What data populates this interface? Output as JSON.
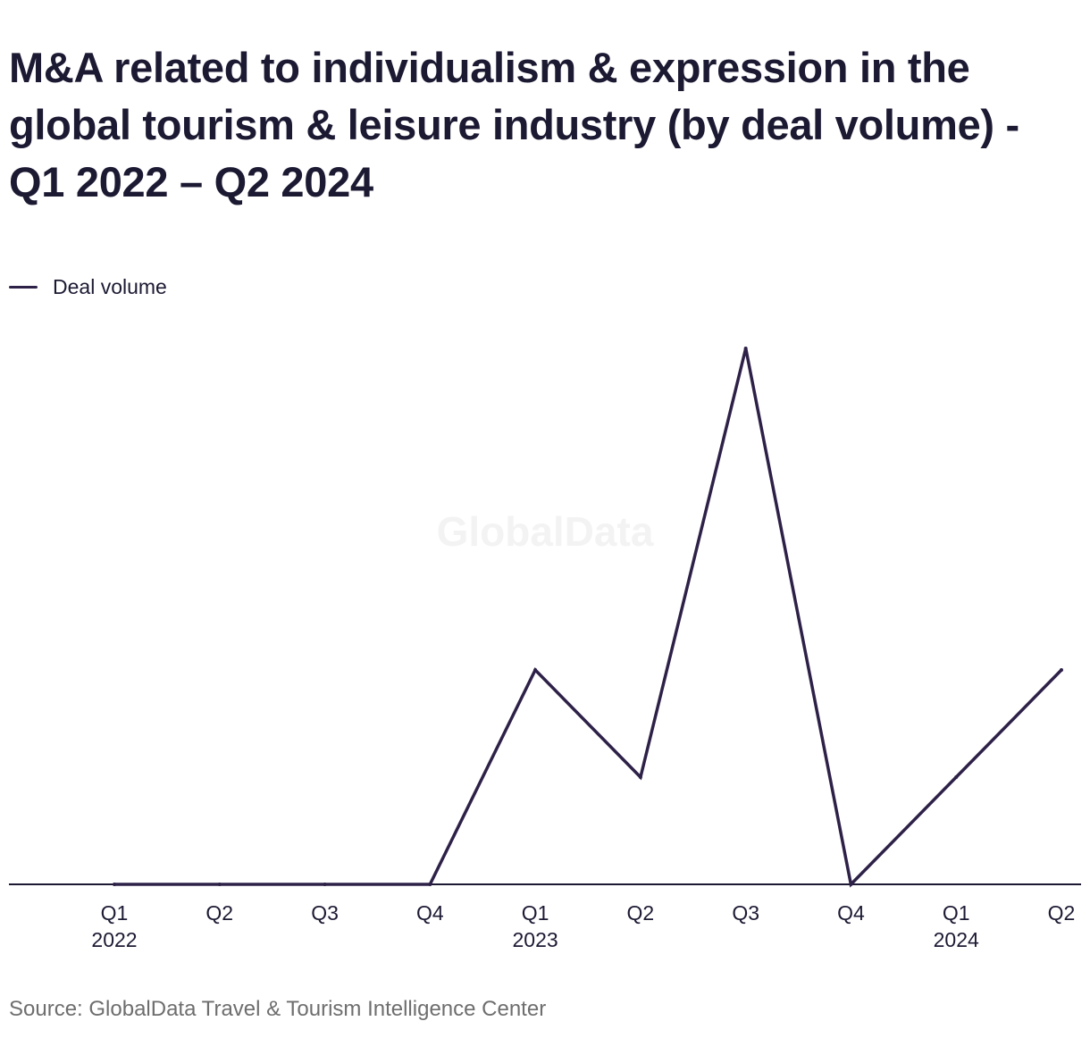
{
  "title": "M&A related to individualism & expression in the global tourism & leisure industry (by deal volume) - Q1 2022 – Q2 2024",
  "watermark": "GlobalData",
  "source": "Source: GlobalData Travel & Tourism Intelligence Center",
  "colors": {
    "line": "#2e2148",
    "axis": "#1c1a33",
    "text": "#1c1a33"
  },
  "chart_data": {
    "type": "line",
    "title": "M&A related to individualism & expression in the global tourism & leisure industry (by deal volume) - Q1 2022 – Q2 2024",
    "categories": [
      "Q1 2022",
      "Q2 2022",
      "Q3 2022",
      "Q4 2022",
      "Q1 2023",
      "Q2 2023",
      "Q3 2023",
      "Q4 2023",
      "Q1 2024",
      "Q2 2024"
    ],
    "tick_labels": [
      {
        "quarter": "Q1",
        "year": "2022"
      },
      {
        "quarter": "Q2",
        "year": ""
      },
      {
        "quarter": "Q3",
        "year": ""
      },
      {
        "quarter": "Q4",
        "year": ""
      },
      {
        "quarter": "Q1",
        "year": "2023"
      },
      {
        "quarter": "Q2",
        "year": ""
      },
      {
        "quarter": "Q3",
        "year": ""
      },
      {
        "quarter": "Q4",
        "year": ""
      },
      {
        "quarter": "Q1",
        "year": "2024"
      },
      {
        "quarter": "Q2",
        "year": ""
      }
    ],
    "series": [
      {
        "name": "Deal volume",
        "values": [
          0,
          0,
          0,
          0,
          2,
          1,
          5,
          0,
          1,
          2
        ]
      }
    ],
    "ylim": [
      0,
      5
    ],
    "y_axis_labels_shown": false,
    "grid": false,
    "legend": "top-left"
  }
}
